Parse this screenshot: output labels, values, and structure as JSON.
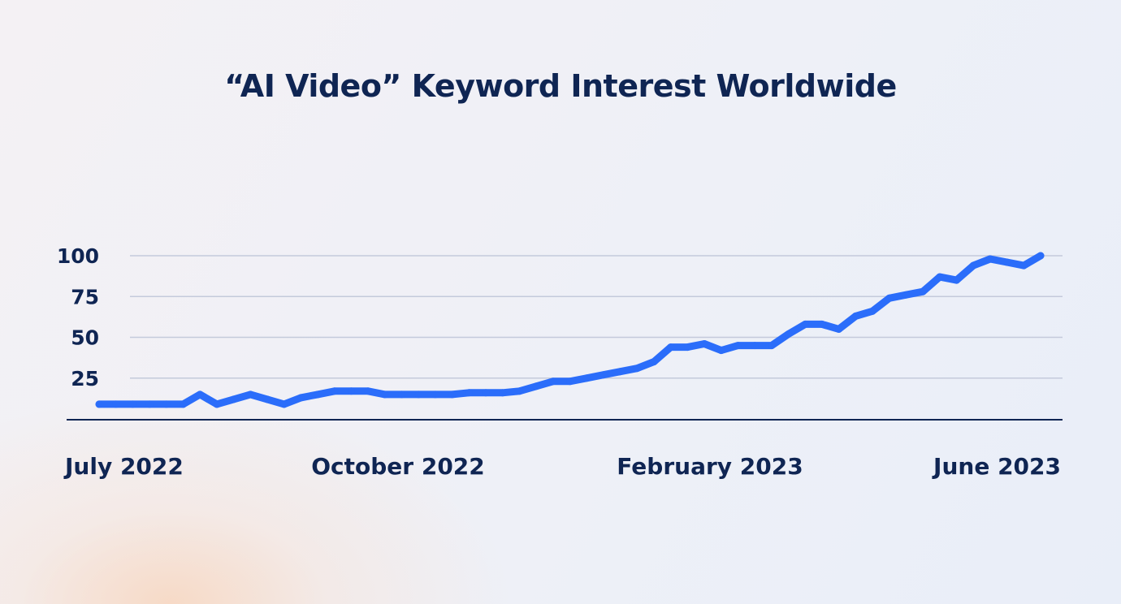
{
  "chart_data": {
    "type": "line",
    "title": "“AI Video” Keyword Interest Worldwide",
    "xlabel": "",
    "ylabel": "",
    "ylim": [
      0,
      100
    ],
    "y_ticks": [
      "25",
      "50",
      "75",
      "100"
    ],
    "x_tick_labels": [
      "July 2022",
      "October 2022",
      "February 2023",
      "June 2023"
    ],
    "grid": true,
    "line_color": "#2b6dfa",
    "axis_color": "#0f2553",
    "grid_color": "#c4cadb",
    "series": [
      {
        "values": [
          9,
          9,
          9,
          9,
          9,
          9,
          15,
          9,
          12,
          15,
          12,
          9,
          13,
          15,
          17,
          17,
          17,
          15,
          15,
          15,
          15,
          15,
          16,
          16,
          16,
          17,
          20,
          23,
          23,
          25,
          27,
          29,
          31,
          35,
          44,
          44,
          46,
          42,
          45,
          45,
          45,
          52,
          58,
          58,
          55,
          63,
          66,
          74,
          76,
          78,
          87,
          85,
          94,
          98,
          96,
          94,
          100
        ]
      }
    ]
  }
}
